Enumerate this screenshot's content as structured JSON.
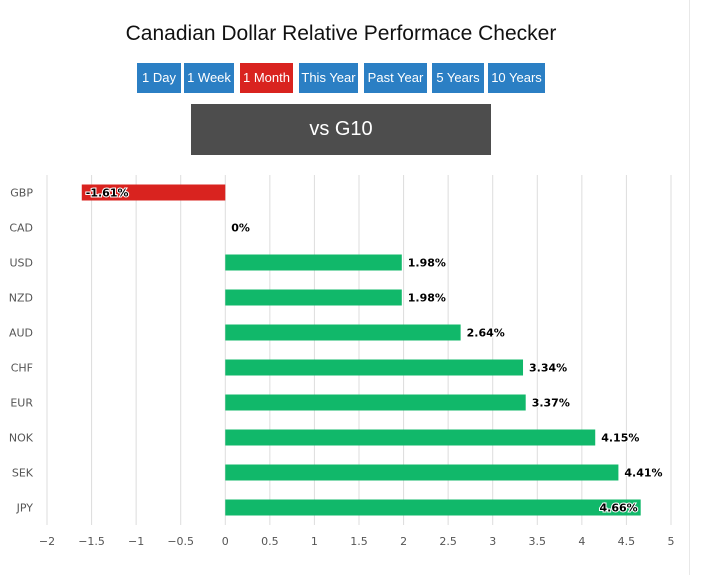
{
  "title": "Canadian Dollar Relative Performace Checker",
  "periods": [
    {
      "label": "1 Day",
      "active": false
    },
    {
      "label": "1 Week",
      "active": false
    },
    {
      "label": "1 Month",
      "active": true
    },
    {
      "label": "This Year",
      "active": false
    },
    {
      "label": "Past Year",
      "active": false
    },
    {
      "label": "5 Years",
      "active": false
    },
    {
      "label": "10 Years",
      "active": false
    }
  ],
  "comparison_label": "vs G10",
  "colors": {
    "button": "#2b7fc4",
    "button_active": "#d9231f",
    "comparison_bg": "#4d4d4d",
    "positive": "#11b86a",
    "negative": "#d9231f",
    "grid": "#dddddd"
  },
  "chart_data": {
    "type": "bar",
    "orientation": "horizontal",
    "categories": [
      "GBP",
      "CAD",
      "USD",
      "NZD",
      "AUD",
      "CHF",
      "EUR",
      "NOK",
      "SEK",
      "JPY"
    ],
    "values": [
      -1.61,
      0,
      1.98,
      1.98,
      2.64,
      3.34,
      3.37,
      4.15,
      4.41,
      4.66
    ],
    "data_labels": [
      "-1.61%",
      "0%",
      "1.98%",
      "1.98%",
      "2.64%",
      "3.34%",
      "3.37%",
      "4.15%",
      "4.41%",
      "4.66%"
    ],
    "x_ticks": [
      -2,
      -1.5,
      -1,
      -0.5,
      0,
      0.5,
      1,
      1.5,
      2,
      2.5,
      3,
      3.5,
      4,
      4.5,
      5
    ],
    "x_tick_labels": [
      "−2",
      "−1.5",
      "−1",
      "−0.5",
      "0",
      "0.5",
      "1",
      "1.5",
      "2",
      "2.5",
      "3",
      "3.5",
      "4",
      "4.5",
      "5"
    ],
    "xlim": [
      -2,
      5
    ],
    "grid": true
  }
}
